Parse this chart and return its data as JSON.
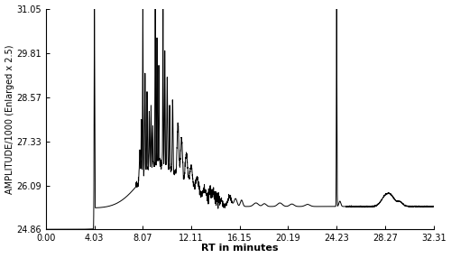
{
  "title": "",
  "xlabel": "RT in minutes",
  "ylabel": "AMPLITUDE/1000 (Enlarged x 2.5)",
  "xlim": [
    0.0,
    32.31
  ],
  "ylim": [
    24.86,
    31.05
  ],
  "xticks": [
    0.0,
    4.03,
    8.07,
    12.11,
    16.15,
    20.19,
    24.23,
    28.27,
    32.31
  ],
  "yticks": [
    24.86,
    26.09,
    27.33,
    28.57,
    29.81,
    31.05
  ],
  "line_color": "#000000",
  "background_color": "#ffffff",
  "line_width": 0.7
}
